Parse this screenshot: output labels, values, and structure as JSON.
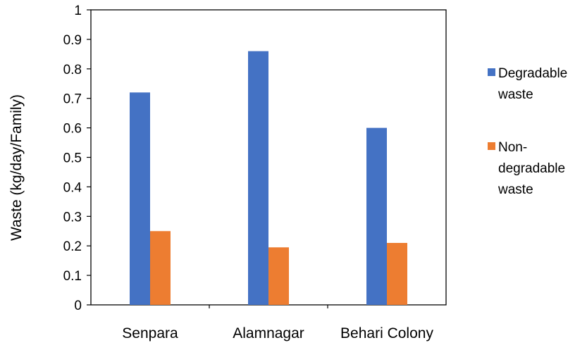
{
  "chart_data": {
    "type": "bar",
    "categories": [
      "Senpara",
      "Alamnagar",
      "Behari Colony"
    ],
    "series": [
      {
        "name": "Degradable waste",
        "legend_lines": [
          "Degradable",
          "waste"
        ],
        "color": "#4472C4",
        "values": [
          0.72,
          0.86,
          0.6
        ]
      },
      {
        "name": "Non-degradable waste",
        "legend_lines": [
          "Non-",
          "degradable",
          "waste"
        ],
        "color": "#ED7D31",
        "values": [
          0.25,
          0.195,
          0.21
        ]
      }
    ],
    "title": "",
    "xlabel": "",
    "ylabel": "Waste (kg/day/Family)",
    "ylim": [
      0,
      1
    ],
    "yticks": [
      0,
      0.1,
      0.2,
      0.3,
      0.4,
      0.5,
      0.6,
      0.7,
      0.8,
      0.9,
      1
    ],
    "ytick_labels": [
      "0",
      "0.1",
      "0.2",
      "0.3",
      "0.4",
      "0.5",
      "0.6",
      "0.7",
      "0.8",
      "0.9",
      "1"
    ],
    "grid": false,
    "legend_position": "right"
  }
}
